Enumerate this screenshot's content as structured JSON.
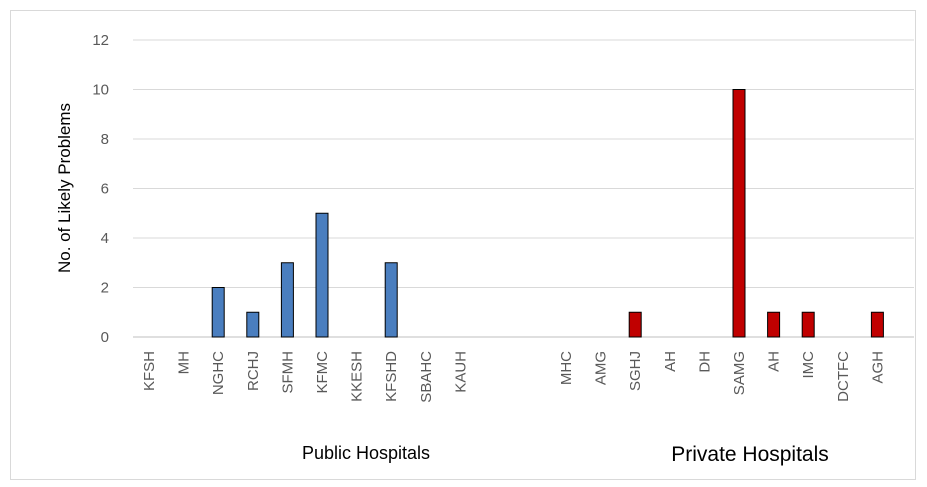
{
  "chart_data": {
    "type": "bar",
    "title": "",
    "xlabel": "",
    "ylabel": "No. of Likely Problems",
    "ylim": [
      0,
      12
    ],
    "yticks": [
      0,
      2,
      4,
      6,
      8,
      10,
      12
    ],
    "grid": true,
    "legend": "none",
    "groups": [
      {
        "label": "Public Hospitals",
        "color": "#4a7ebf",
        "categories": [
          "KFSH",
          "MH",
          "NGHC",
          "RCHJ",
          "SFMH",
          "KFMC",
          "KKESH",
          "KFSHD",
          "SBAHC",
          "KAUH"
        ],
        "values": [
          0,
          0,
          2,
          1,
          3,
          5,
          0,
          3,
          0,
          0
        ]
      },
      {
        "label": "Private Hospitals",
        "color": "#c00000",
        "categories": [
          "MHC",
          "AMG",
          "SGHJ",
          "AH",
          "DH",
          "SAMG",
          "AH",
          "IMC",
          "DCTFC",
          "AGH"
        ],
        "values": [
          0,
          0,
          1,
          0,
          0,
          10,
          1,
          1,
          0,
          1
        ]
      }
    ]
  }
}
